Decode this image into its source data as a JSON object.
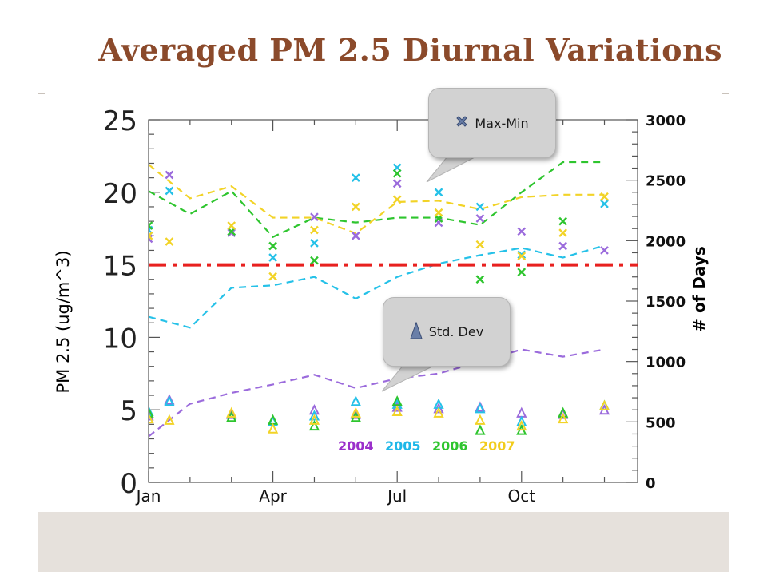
{
  "slide": {
    "title": "Averaged PM 2.5 Diurnal Variations"
  },
  "callouts": {
    "max_min": {
      "label": "Max-Min"
    },
    "std_dev": {
      "label": "Std. Dev"
    }
  },
  "chart_data": {
    "type": "scatter",
    "title": "",
    "xlabel": "",
    "ylabel": "PM 2.5 (ug/m^3)",
    "y2label": "# of Days",
    "xlim": [
      1,
      12.8
    ],
    "ylim": [
      0,
      25
    ],
    "y2lim": [
      0,
      3000
    ],
    "x_ticks": [
      {
        "x": 1,
        "label": "Jan"
      },
      {
        "x": 4,
        "label": "Apr"
      },
      {
        "x": 7,
        "label": "Jul"
      },
      {
        "x": 10,
        "label": "Oct"
      }
    ],
    "y_ticks": [
      0,
      5,
      10,
      15,
      20,
      25
    ],
    "y2_ticks": [
      0,
      500,
      1000,
      1500,
      2000,
      2500,
      3000
    ],
    "reference_line": {
      "y": 15,
      "color": "#e8201f",
      "style": "dash-dot"
    },
    "legend_years": [
      {
        "label": "2004",
        "color": "#9b2fcb"
      },
      {
        "label": "2005",
        "color": "#1fb7e8"
      },
      {
        "label": "2006",
        "color": "#2ec52e"
      },
      {
        "label": "2007",
        "color": "#f2cc1c"
      }
    ],
    "series": [
      {
        "name": "2004",
        "color": "#9b6bdc",
        "days": {
          "x": [
            1,
            2,
            3,
            4,
            5,
            6,
            7,
            8,
            9,
            10,
            11,
            12
          ],
          "y": [
            380,
            650,
            740,
            810,
            890,
            780,
            860,
            900,
            1000,
            1100,
            1040,
            1100
          ]
        },
        "maxmin": {
          "x": [
            1,
            1.5,
            3,
            5,
            6,
            7,
            8,
            9,
            10,
            11,
            12
          ],
          "y": [
            16.8,
            21.2,
            17.2,
            18.3,
            17.0,
            20.6,
            17.9,
            18.2,
            17.3,
            16.3,
            16.0
          ]
        },
        "stddev": {
          "x": [
            1,
            1.5,
            3,
            5,
            6,
            7,
            8,
            9,
            10,
            11,
            12
          ],
          "y": [
            4.6,
            5.7,
            4.7,
            5.0,
            4.7,
            5.2,
            5.1,
            5.2,
            4.8,
            4.7,
            5.0
          ]
        }
      },
      {
        "name": "2005",
        "color": "#25c1e8",
        "days": {
          "x": [
            1,
            2,
            3,
            4,
            5,
            6,
            7,
            8,
            9,
            10,
            11,
            12
          ],
          "y": [
            1370,
            1280,
            1610,
            1630,
            1700,
            1520,
            1700,
            1810,
            1880,
            1940,
            1860,
            1960
          ]
        },
        "maxmin": {
          "x": [
            1,
            1.5,
            4,
            5,
            6,
            7,
            8,
            9,
            10,
            12
          ],
          "y": [
            17.4,
            20.1,
            15.5,
            16.5,
            21.0,
            21.7,
            20.0,
            19.0,
            15.7,
            19.2
          ]
        },
        "stddev": {
          "x": [
            1,
            1.5,
            4,
            5,
            6,
            7,
            8,
            9,
            10,
            12
          ],
          "y": [
            4.9,
            5.6,
            4.2,
            4.6,
            5.6,
            5.4,
            5.4,
            5.1,
            4.2,
            5.3
          ]
        }
      },
      {
        "name": "2006",
        "color": "#2ec52e",
        "days": {
          "x": [
            1,
            2,
            3,
            4,
            5,
            6,
            7,
            8,
            9,
            10,
            11,
            12
          ],
          "y": [
            2410,
            2220,
            2410,
            2030,
            2190,
            2150,
            2190,
            2190,
            2130,
            2400,
            2650,
            2650
          ]
        },
        "maxmin": {
          "x": [
            1,
            3,
            4,
            5,
            7,
            8,
            9,
            10,
            11
          ],
          "y": [
            17.7,
            17.3,
            16.3,
            15.3,
            21.3,
            18.2,
            14.0,
            14.5,
            18.0
          ]
        },
        "stddev": {
          "x": [
            1,
            3,
            4,
            5,
            6,
            7,
            9,
            10,
            11
          ],
          "y": [
            4.8,
            4.5,
            4.3,
            3.9,
            4.5,
            5.6,
            3.6,
            3.6,
            4.8
          ]
        }
      },
      {
        "name": "2007",
        "color": "#f2d327",
        "days": {
          "x": [
            1,
            2,
            3,
            4,
            5,
            6,
            7,
            8,
            9,
            10,
            11,
            12
          ],
          "y": [
            2630,
            2350,
            2450,
            2190,
            2190,
            2060,
            2320,
            2330,
            2260,
            2360,
            2380,
            2380
          ]
        },
        "maxmin": {
          "x": [
            1,
            1.5,
            3,
            4,
            5,
            6,
            7,
            8,
            9,
            10,
            11,
            12
          ],
          "y": [
            17.0,
            16.6,
            17.7,
            14.2,
            17.4,
            19.0,
            19.5,
            18.6,
            16.4,
            15.6,
            17.2,
            19.7
          ]
        },
        "stddev": {
          "x": [
            1,
            1.5,
            3,
            4,
            5,
            6,
            7,
            8,
            9,
            10,
            11,
            12
          ],
          "y": [
            4.4,
            4.3,
            4.8,
            3.7,
            4.3,
            4.8,
            4.9,
            4.8,
            4.3,
            3.9,
            4.4,
            5.3
          ]
        }
      }
    ]
  }
}
